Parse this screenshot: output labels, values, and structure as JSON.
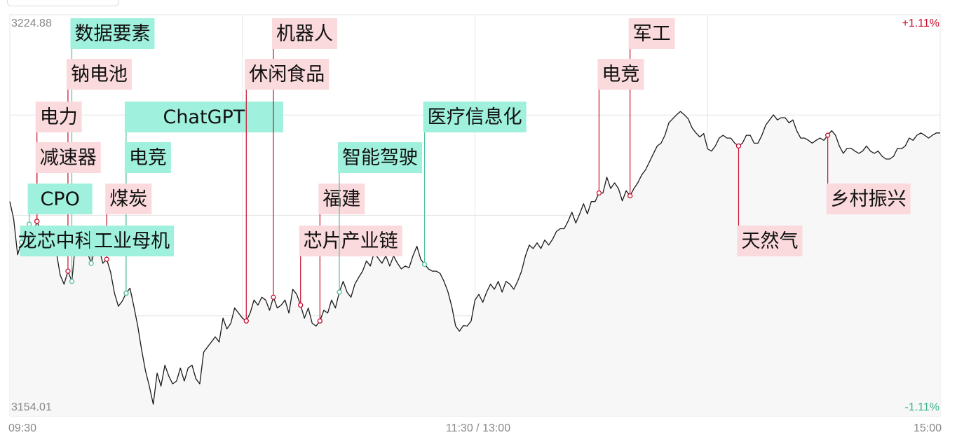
{
  "chart_data": {
    "type": "line",
    "y_max_label": "3224.88",
    "y_min_label": "3154.01",
    "y_max_pct_label": "+1.11%",
    "y_min_pct_label": "-1.11%",
    "ylim": [
      3154.01,
      3224.88
    ],
    "x_tick_labels": [
      "09:30",
      "11:30 / 13:00",
      "15:00"
    ],
    "x_range_minutes": [
      0,
      240
    ],
    "grid": true,
    "colors": {
      "line": "#1a1a1a",
      "up_tag_bg": "#fadadd",
      "up_tag_stem": "#c8102e",
      "down_tag_bg": "#9ff0dc",
      "down_tag_stem": "#4fbf9a",
      "pct_up": "#c8102e",
      "pct_down": "#3cb38b",
      "grid": "#e6e6e6",
      "axis_text": "#888888"
    },
    "series": [
      {
        "points": [
          [
            0,
            3191.9
          ],
          [
            1,
            3188.8
          ],
          [
            2,
            3182.5
          ],
          [
            3,
            3184.7
          ],
          [
            4,
            3183.6
          ],
          [
            5,
            3187.9
          ],
          [
            6,
            3186.0
          ],
          [
            7,
            3188.4
          ],
          [
            8,
            3186.6
          ],
          [
            9,
            3184.7
          ],
          [
            10,
            3185.9
          ],
          [
            11,
            3183.6
          ],
          [
            12,
            3182.9
          ],
          [
            13,
            3178.9
          ],
          [
            14,
            3177.3
          ],
          [
            15,
            3179.6
          ],
          [
            16,
            3177.8
          ],
          [
            17,
            3185.2
          ],
          [
            18,
            3183.6
          ],
          [
            19,
            3186.6
          ],
          [
            20,
            3182.9
          ],
          [
            21,
            3181.0
          ],
          [
            22,
            3183.6
          ],
          [
            23,
            3183.6
          ],
          [
            24,
            3181.0
          ],
          [
            25,
            3181.7
          ],
          [
            26,
            3179.4
          ],
          [
            27,
            3175.7
          ],
          [
            28,
            3173.4
          ],
          [
            29,
            3174.3
          ],
          [
            30,
            3175.7
          ],
          [
            31,
            3176.6
          ],
          [
            32,
            3173.4
          ],
          [
            33,
            3169.9
          ],
          [
            34,
            3165.7
          ],
          [
            35,
            3162.0
          ],
          [
            36,
            3159.3
          ],
          [
            37,
            3156.1
          ],
          [
            38,
            3161.6
          ],
          [
            39,
            3159.3
          ],
          [
            40,
            3163.0
          ],
          [
            41,
            3161.1
          ],
          [
            42,
            3159.7
          ],
          [
            43,
            3160.2
          ],
          [
            44,
            3162.5
          ],
          [
            45,
            3160.2
          ],
          [
            46,
            3162.5
          ],
          [
            47,
            3163.0
          ],
          [
            48,
            3160.6
          ],
          [
            49,
            3159.7
          ],
          [
            50,
            3165.3
          ],
          [
            51,
            3166.2
          ],
          [
            52,
            3167.1
          ],
          [
            53,
            3168.0
          ],
          [
            54,
            3167.1
          ],
          [
            55,
            3171.3
          ],
          [
            56,
            3169.4
          ],
          [
            57,
            3170.4
          ],
          [
            58,
            3173.1
          ],
          [
            59,
            3172.2
          ],
          [
            60,
            3171.3
          ],
          [
            61,
            3170.8
          ],
          [
            62,
            3172.2
          ],
          [
            63,
            3174.5
          ],
          [
            64,
            3173.6
          ],
          [
            65,
            3175.0
          ],
          [
            66,
            3174.5
          ],
          [
            67,
            3172.7
          ],
          [
            68,
            3175.0
          ],
          [
            69,
            3173.1
          ],
          [
            70,
            3173.6
          ],
          [
            71,
            3174.5
          ],
          [
            72,
            3172.2
          ],
          [
            73,
            3176.4
          ],
          [
            74,
            3175.5
          ],
          [
            75,
            3173.6
          ],
          [
            76,
            3171.3
          ],
          [
            77,
            3173.1
          ],
          [
            78,
            3170.4
          ],
          [
            79,
            3169.9
          ],
          [
            80,
            3170.8
          ],
          [
            81,
            3172.7
          ],
          [
            82,
            3172.2
          ],
          [
            83,
            3174.5
          ],
          [
            84,
            3173.1
          ],
          [
            85,
            3175.9
          ],
          [
            86,
            3177.8
          ],
          [
            87,
            3175.9
          ],
          [
            88,
            3175.0
          ],
          [
            89,
            3177.3
          ],
          [
            90,
            3178.5
          ],
          [
            91,
            3179.6
          ],
          [
            92,
            3181.4
          ],
          [
            93,
            3180.5
          ],
          [
            94,
            3182.9
          ],
          [
            95,
            3181.9
          ],
          [
            96,
            3181.0
          ],
          [
            97,
            3182.3
          ],
          [
            98,
            3180.5
          ],
          [
            99,
            3182.3
          ],
          [
            100,
            3181.0
          ],
          [
            101,
            3180.0
          ],
          [
            102,
            3180.5
          ],
          [
            103,
            3180.2
          ],
          [
            104,
            3182.3
          ],
          [
            105,
            3184.0
          ],
          [
            106,
            3181.7
          ],
          [
            107,
            3180.8
          ],
          [
            108,
            3180.0
          ],
          [
            109,
            3179.6
          ],
          [
            110,
            3179.6
          ],
          [
            111,
            3179.2
          ],
          [
            112,
            3177.8
          ],
          [
            113,
            3176.0
          ],
          [
            114,
            3173.4
          ],
          [
            115,
            3169.9
          ],
          [
            116,
            3169.0
          ],
          [
            117,
            3170.0
          ],
          [
            118,
            3169.9
          ],
          [
            119,
            3170.8
          ],
          [
            120,
            3174.5
          ],
          [
            121,
            3175.5
          ],
          [
            122,
            3174.1
          ],
          [
            123,
            3175.9
          ],
          [
            124,
            3177.3
          ],
          [
            125,
            3176.4
          ],
          [
            126,
            3177.8
          ],
          [
            127,
            3175.9
          ],
          [
            128,
            3177.8
          ],
          [
            129,
            3177.3
          ],
          [
            130,
            3176.4
          ],
          [
            131,
            3177.8
          ],
          [
            132,
            3179.6
          ],
          [
            133,
            3182.3
          ],
          [
            134,
            3184.2
          ],
          [
            135,
            3183.6
          ],
          [
            136,
            3184.6
          ],
          [
            137,
            3183.6
          ],
          [
            138,
            3185.1
          ],
          [
            139,
            3184.2
          ],
          [
            140,
            3185.2
          ],
          [
            141,
            3186.6
          ],
          [
            142,
            3187.1
          ],
          [
            143,
            3187.1
          ],
          [
            144,
            3188.4
          ],
          [
            145,
            3190.0
          ],
          [
            146,
            3188.1
          ],
          [
            147,
            3189.7
          ],
          [
            148,
            3191.5
          ],
          [
            149,
            3189.7
          ],
          [
            150,
            3191.9
          ],
          [
            151,
            3191.9
          ],
          [
            152,
            3193.4
          ],
          [
            153,
            3193.4
          ],
          [
            154,
            3196.2
          ],
          [
            155,
            3194.2
          ],
          [
            156,
            3195.2
          ],
          [
            157,
            3194.2
          ],
          [
            158,
            3192.0
          ],
          [
            159,
            3193.8
          ],
          [
            160,
            3192.9
          ],
          [
            161,
            3194.2
          ],
          [
            162,
            3195.2
          ],
          [
            163,
            3196.6
          ],
          [
            164,
            3197.5
          ],
          [
            165,
            3198.9
          ],
          [
            166,
            3200.3
          ],
          [
            167,
            3201.7
          ],
          [
            168,
            3202.2
          ],
          [
            169,
            3203.6
          ],
          [
            170,
            3205.8
          ],
          [
            171,
            3206.5
          ],
          [
            172,
            3207.2
          ],
          [
            173,
            3207.8
          ],
          [
            174,
            3207.2
          ],
          [
            175,
            3206.5
          ],
          [
            176,
            3204.9
          ],
          [
            177,
            3204.0
          ],
          [
            178,
            3203.3
          ],
          [
            179,
            3203.9
          ],
          [
            180,
            3201.2
          ],
          [
            181,
            3200.8
          ],
          [
            182,
            3201.7
          ],
          [
            183,
            3203.1
          ],
          [
            184,
            3203.6
          ],
          [
            185,
            3203.1
          ],
          [
            186,
            3203.1
          ],
          [
            187,
            3202.2
          ],
          [
            188,
            3201.7
          ],
          [
            189,
            3202.2
          ],
          [
            190,
            3203.6
          ],
          [
            191,
            3203.6
          ],
          [
            192,
            3202.2
          ],
          [
            193,
            3202.2
          ],
          [
            194,
            3203.6
          ],
          [
            195,
            3205.4
          ],
          [
            196,
            3206.3
          ],
          [
            197,
            3207.2
          ],
          [
            198,
            3206.3
          ],
          [
            199,
            3206.7
          ],
          [
            200,
            3206.7
          ],
          [
            201,
            3205.8
          ],
          [
            202,
            3206.3
          ],
          [
            203,
            3204.4
          ],
          [
            204,
            3203.1
          ],
          [
            205,
            3203.1
          ],
          [
            206,
            3202.7
          ],
          [
            207,
            3202.2
          ],
          [
            208,
            3202.7
          ],
          [
            209,
            3203.1
          ],
          [
            210,
            3202.7
          ],
          [
            211,
            3203.6
          ],
          [
            212,
            3204.4
          ],
          [
            213,
            3203.6
          ],
          [
            214,
            3201.7
          ],
          [
            215,
            3200.4
          ],
          [
            216,
            3201.3
          ],
          [
            217,
            3201.3
          ],
          [
            218,
            3200.8
          ],
          [
            219,
            3200.4
          ],
          [
            220,
            3200.8
          ],
          [
            221,
            3201.7
          ],
          [
            222,
            3200.8
          ],
          [
            223,
            3200.4
          ],
          [
            224,
            3200.8
          ],
          [
            225,
            3199.9
          ],
          [
            226,
            3199.4
          ],
          [
            227,
            3199.4
          ],
          [
            228,
            3199.9
          ],
          [
            229,
            3201.3
          ],
          [
            230,
            3201.2
          ],
          [
            231,
            3201.7
          ],
          [
            232,
            3203.1
          ],
          [
            233,
            3202.7
          ],
          [
            234,
            3203.6
          ],
          [
            235,
            3204.0
          ],
          [
            236,
            3203.6
          ],
          [
            237,
            3203.1
          ],
          [
            238,
            3203.6
          ],
          [
            239,
            3204.0
          ],
          [
            240,
            3204.0
          ]
        ]
      }
    ],
    "annotations": [
      {
        "label": "数据要素",
        "kind": "down",
        "t": 16,
        "tier": 1,
        "align": "right"
      },
      {
        "label": "钠电池",
        "kind": "up",
        "t": 15,
        "tier": 2,
        "align": "right"
      },
      {
        "label": "电力",
        "kind": "up",
        "t": 7,
        "tier": 3,
        "align": "right"
      },
      {
        "label": "减速器",
        "kind": "up",
        "t": 7,
        "tier": 4,
        "align": "right"
      },
      {
        "label": "CPO",
        "kind": "down",
        "t": 5,
        "tier": 5,
        "align": "right",
        "w": 92
      },
      {
        "label": "龙芯中科",
        "kind": "down",
        "t": 3,
        "tier": 6,
        "align": "right",
        "w": 102
      },
      {
        "label": "ChatGPT",
        "kind": "down",
        "t": 30,
        "tier": 3,
        "align": "right",
        "w": 226
      },
      {
        "label": "电竞",
        "kind": "down",
        "t": 30,
        "tier": 4,
        "align": "right"
      },
      {
        "label": "煤炭",
        "kind": "up",
        "t": 25,
        "tier": 5,
        "align": "right"
      },
      {
        "label": "工业母机",
        "kind": "down",
        "t": 21,
        "tier": 6,
        "align": "right"
      },
      {
        "label": "机器人",
        "kind": "up",
        "t": 68,
        "tier": 1,
        "align": "right"
      },
      {
        "label": "休闲食品",
        "kind": "up",
        "t": 61,
        "tier": 2,
        "align": "right"
      },
      {
        "label": "福建",
        "kind": "up",
        "t": 80,
        "tier": 5,
        "align": "right"
      },
      {
        "label": "芯片产业链",
        "kind": "up",
        "t": 75,
        "tier": 6,
        "align": "right"
      },
      {
        "label": "智能驾驶",
        "kind": "down",
        "t": 85,
        "tier": 4,
        "align": "right"
      },
      {
        "label": "医疗信息化",
        "kind": "down",
        "t": 107,
        "tier": 3,
        "align": "right"
      },
      {
        "label": "军工",
        "kind": "up",
        "t": 160,
        "tier": 1,
        "align": "right"
      },
      {
        "label": "电竞",
        "kind": "up",
        "t": 152,
        "tier": 2,
        "align": "right"
      },
      {
        "label": "天然气",
        "kind": "up",
        "t": 188,
        "tier": 6,
        "align": "right"
      },
      {
        "label": "乡村振兴",
        "kind": "up",
        "t": 211,
        "tier": 5,
        "align": "right"
      }
    ]
  }
}
